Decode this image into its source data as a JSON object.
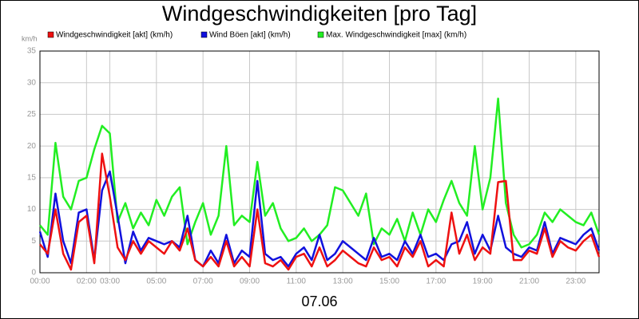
{
  "chart_data": {
    "type": "line",
    "title": "Windgeschwindigkeiten [pro Tag]",
    "y_label": "km/h",
    "x_label": "07.06",
    "x": [
      0,
      20,
      40,
      60,
      80,
      100,
      120,
      140,
      160,
      180,
      200,
      220,
      240,
      260,
      280,
      300,
      320,
      340,
      360,
      380,
      400,
      420,
      440,
      460,
      480,
      500,
      520,
      540,
      560,
      580,
      600,
      620,
      640,
      660,
      680,
      700,
      720,
      740,
      760,
      780,
      800,
      820,
      840,
      860,
      880,
      900,
      920,
      940,
      960,
      980,
      1000,
      1020,
      1040,
      1060,
      1080,
      1100,
      1120,
      1140,
      1160,
      1180,
      1200,
      1220,
      1240,
      1260,
      1280,
      1300,
      1320,
      1340,
      1360,
      1380,
      1400,
      1420,
      1440
    ],
    "series": [
      {
        "name": "Windgeschwindigkeit [akt] (km/h)",
        "color": "#ee1111",
        "values": [
          4.5,
          3,
          10,
          3,
          0.5,
          8,
          9,
          1.5,
          18.8,
          12,
          4,
          2,
          5,
          3,
          5,
          4,
          3,
          5,
          3.5,
          7,
          2,
          1,
          2.5,
          1,
          5,
          1,
          2.5,
          1,
          10,
          1.5,
          1,
          2,
          0.5,
          2.5,
          3,
          1,
          4,
          1,
          2,
          3.5,
          2.5,
          1.5,
          1,
          4,
          2,
          2.5,
          1,
          4,
          2.5,
          5,
          1,
          2,
          1,
          9.5,
          3,
          6,
          2,
          4,
          3,
          14.3,
          14.5,
          2,
          2,
          3.5,
          3,
          7,
          2.5,
          5,
          4,
          3.5,
          5,
          6,
          2.5
        ]
      },
      {
        "name": "Wind Böen [akt] (km/h)",
        "color": "#1111dd",
        "values": [
          6.5,
          2.5,
          12.5,
          5,
          1.5,
          9.5,
          10,
          2,
          13,
          16,
          9,
          1.5,
          6.5,
          3.5,
          5.5,
          5,
          4.5,
          5,
          4,
          9,
          2,
          1,
          3.5,
          1.5,
          6,
          1.5,
          3.5,
          2.5,
          14.5,
          3,
          2,
          2.5,
          1,
          3,
          4,
          2,
          6,
          2,
          3,
          5,
          4,
          3,
          2,
          5.5,
          2.5,
          3,
          2,
          5,
          3,
          6,
          2.5,
          3,
          2,
          4.5,
          5,
          8,
          3,
          6,
          3.5,
          9,
          4,
          3,
          2.5,
          4,
          3.5,
          8,
          3,
          5.5,
          5,
          4.5,
          6,
          7,
          3.5
        ]
      },
      {
        "name": "Max. Windgeschwindigkeit [max] (km/h)",
        "color": "#22ee22",
        "values": [
          7.5,
          6,
          20.5,
          12,
          10,
          14.5,
          15,
          19.5,
          23.2,
          22,
          8,
          11,
          7,
          9.5,
          7.5,
          11.5,
          9,
          12,
          13.5,
          4.5,
          8,
          11,
          6,
          9,
          20,
          7.5,
          9,
          8,
          17.5,
          9,
          11,
          7,
          5,
          5.5,
          7,
          5,
          6,
          7.5,
          13.5,
          13,
          11,
          9,
          12.5,
          4.5,
          7,
          6,
          8.5,
          5,
          9.5,
          6,
          10,
          8,
          11.5,
          14.5,
          11,
          9,
          20,
          10,
          15,
          27.5,
          11,
          6,
          4,
          4.5,
          6,
          9.5,
          8,
          10,
          9,
          8,
          7.5,
          9.5,
          6
        ]
      }
    ],
    "xlim": [
      0,
      1440
    ],
    "xticks": [
      {
        "value": 0,
        "label": "00:00"
      },
      {
        "value": 120,
        "label": "02:00"
      },
      {
        "value": 180,
        "label": "03:00"
      },
      {
        "value": 300,
        "label": "05:00"
      },
      {
        "value": 420,
        "label": "07:00"
      },
      {
        "value": 540,
        "label": "09:00"
      },
      {
        "value": 660,
        "label": "11:00"
      },
      {
        "value": 780,
        "label": "13:00"
      },
      {
        "value": 900,
        "label": "15:00"
      },
      {
        "value": 1020,
        "label": "17:00"
      },
      {
        "value": 1140,
        "label": "19:00"
      },
      {
        "value": 1260,
        "label": "21:00"
      },
      {
        "value": 1380,
        "label": "23:00"
      }
    ],
    "ylim": [
      0,
      35
    ],
    "yticks": [
      0,
      5,
      10,
      15,
      20,
      25,
      30,
      35
    ],
    "grid": true
  }
}
